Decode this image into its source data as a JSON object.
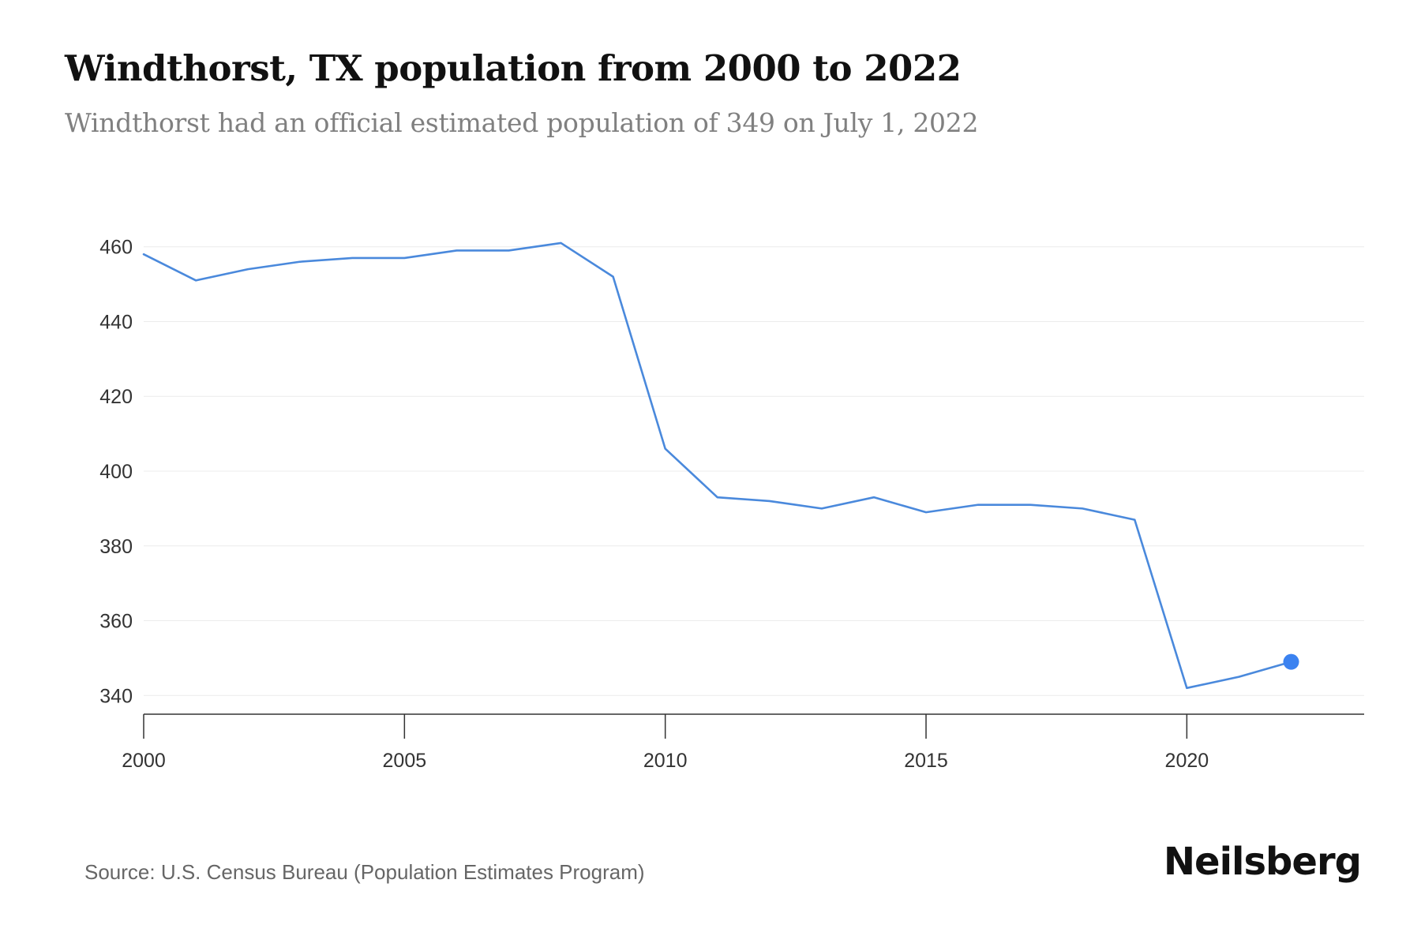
{
  "page": {
    "title": "Windthorst, TX population from 2000 to 2022",
    "subtitle": "Windthorst had an official estimated population of 349 on July 1, 2022",
    "source": "Source: U.S. Census Bureau (Population Estimates Program)",
    "brand": "Neilsberg"
  },
  "colors": {
    "line": "#4a89dc",
    "marker": "#3b82f0",
    "grid": "#ececec",
    "axis": "#333333"
  },
  "chart_data": {
    "type": "line",
    "title": "Windthorst, TX population from 2000 to 2022",
    "subtitle": "Windthorst had an official estimated population of 349 on July 1, 2022",
    "xlabel": "",
    "ylabel": "",
    "x": [
      2000,
      2001,
      2002,
      2003,
      2004,
      2005,
      2006,
      2007,
      2008,
      2009,
      2010,
      2011,
      2012,
      2013,
      2014,
      2015,
      2016,
      2017,
      2018,
      2019,
      2020,
      2021,
      2022
    ],
    "series": [
      {
        "values": [
          458,
          451,
          454,
          456,
          457,
          457,
          459,
          459,
          461,
          452,
          406,
          393,
          392,
          390,
          393,
          389,
          391,
          391,
          390,
          387,
          342,
          345,
          349
        ]
      }
    ],
    "highlight_last_point": true,
    "xlim": [
      2000,
      2023.4
    ],
    "ylim": [
      335,
      465
    ],
    "x_ticks": [
      2000,
      2005,
      2010,
      2015,
      2020
    ],
    "y_ticks": [
      340,
      360,
      380,
      400,
      420,
      440,
      460
    ],
    "grid": "horizontal",
    "legend": "none"
  }
}
